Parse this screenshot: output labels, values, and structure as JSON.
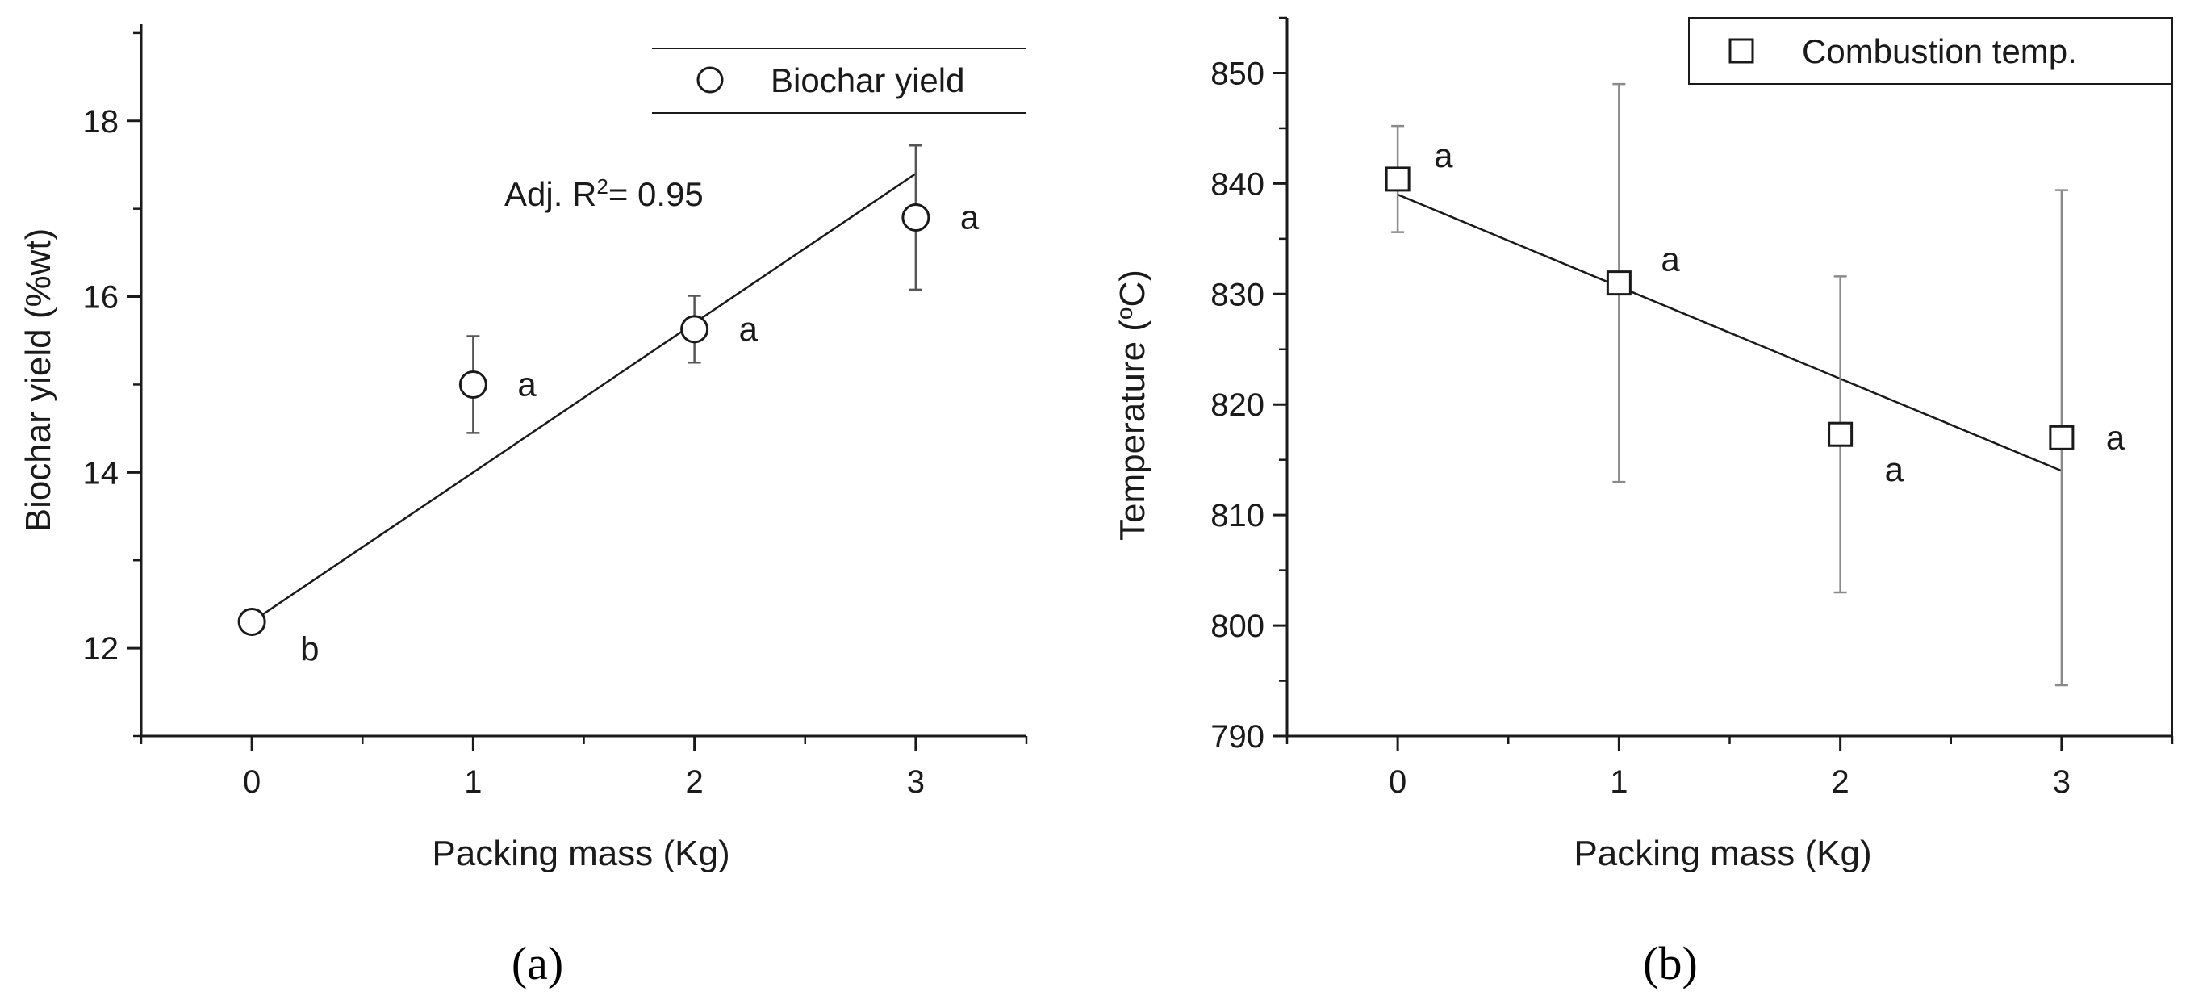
{
  "chart_data": [
    {
      "panel": "a",
      "type": "scatter",
      "caption": "(a)",
      "xlabel": "Packing mass (Kg)",
      "ylabel": "Biochar yield (%wt)",
      "xlim": [
        -0.5,
        3.5
      ],
      "ylim": [
        11,
        19.1
      ],
      "xticks": [
        0,
        1,
        2,
        3
      ],
      "yticks": [
        12,
        14,
        16,
        18
      ],
      "marker": "circle",
      "series": [
        {
          "name": "Biochar yield",
          "x": [
            0,
            1,
            2,
            3
          ],
          "y": [
            12.3,
            15.0,
            15.63,
            16.9
          ],
          "err": [
            0.1,
            0.55,
            0.38,
            0.82
          ],
          "letters": [
            "b",
            "a",
            "a",
            "a"
          ]
        }
      ],
      "fit": {
        "x": [
          0,
          3
        ],
        "y": [
          12.3,
          17.4
        ]
      },
      "annotation": {
        "prefix": "Adj. R",
        "sup": "2",
        "suffix": "= 0.95"
      },
      "legend": "top-right",
      "grid": false
    },
    {
      "panel": "b",
      "type": "scatter",
      "caption": "(b)",
      "xlabel": "Packing mass (Kg)",
      "ylabel_prefix": "Temperature (",
      "ylabel_sup": "o",
      "ylabel_suffix": "C)",
      "xlim": [
        -0.5,
        3.5
      ],
      "ylim": [
        790,
        855
      ],
      "xticks": [
        0,
        1,
        2,
        3
      ],
      "yticks": [
        790,
        800,
        810,
        820,
        830,
        840,
        850
      ],
      "marker": "square",
      "series": [
        {
          "name": "Combustion temp.",
          "x": [
            0,
            1,
            2,
            3
          ],
          "y": [
            840.4,
            831.0,
            817.3,
            817.0
          ],
          "err": [
            4.8,
            18.0,
            14.3,
            22.4
          ],
          "letters": [
            "a",
            "a",
            "a",
            "a"
          ]
        }
      ],
      "fit": {
        "x": [
          0,
          3
        ],
        "y": [
          839.0,
          814.0
        ]
      },
      "legend": "top-right",
      "grid": false
    }
  ]
}
